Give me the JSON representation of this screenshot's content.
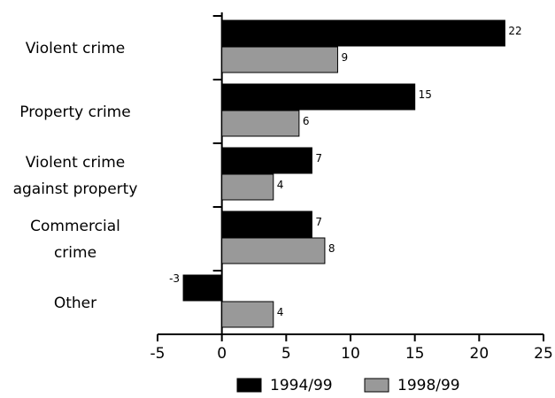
{
  "chart_data": {
    "type": "bar",
    "orientation": "horizontal",
    "categories": [
      [
        "Violent crime"
      ],
      [
        "Property crime"
      ],
      [
        "Violent crime",
        "against property"
      ],
      [
        "Commercial",
        "crime"
      ],
      [
        "Other"
      ]
    ],
    "series": [
      {
        "name": "1994/99",
        "color": "#000000",
        "values": [
          22,
          15,
          7,
          7,
          -3
        ]
      },
      {
        "name": "1998/99",
        "color": "#999999",
        "values": [
          9,
          6,
          4,
          8,
          4
        ]
      }
    ],
    "xlim": [
      -5,
      25
    ],
    "xticks": [
      -5,
      0,
      5,
      10,
      15,
      20,
      25
    ],
    "legend_position": "bottom",
    "grid": false
  }
}
